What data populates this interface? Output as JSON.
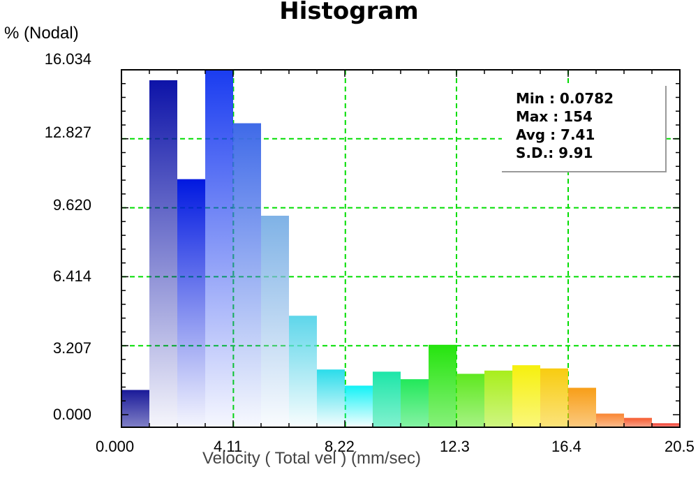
{
  "title": "Histogram",
  "y_axis_label": "% (Nodal)",
  "x_axis_label": "Velocity ( Total vel ) (mm/sec)",
  "y_ticks": [
    "16.034",
    "12.827",
    "9.620",
    "6.414",
    "3.207",
    "0.000"
  ],
  "x_ticks": [
    "0.000",
    "4.11",
    "8.22",
    "12.3",
    "16.4",
    "20.5"
  ],
  "stats": {
    "min": "Min : 0.0782",
    "max": "Max : 154",
    "avg": "Avg : 7.41",
    "sd": "S.D.: 9.91"
  },
  "chart_data": {
    "type": "bar",
    "title": "Histogram",
    "xlabel": "Velocity ( Total vel ) (mm/sec)",
    "ylabel": "% (Nodal)",
    "xlim": [
      0,
      20.5
    ],
    "ylim": [
      -0.6,
      16.034
    ],
    "yticks": [
      0.0,
      3.207,
      6.414,
      9.62,
      12.827,
      16.034
    ],
    "xticks": [
      0.0,
      4.11,
      8.22,
      12.3,
      16.4,
      20.5
    ],
    "grid": true,
    "bin_width": 1.025,
    "values": [
      1.15,
      15.55,
      10.95,
      16.034,
      13.55,
      9.25,
      4.6,
      2.1,
      1.35,
      2.0,
      1.65,
      3.25,
      1.9,
      2.05,
      2.3,
      2.15,
      1.25,
      0.05,
      -0.15,
      -0.4
    ],
    "colors": [
      "#1a1a99",
      "#0d13a8",
      "#0018e0",
      "#1a3cf0",
      "#3f6ae8",
      "#7fb2e6",
      "#5ed6ea",
      "#2bdcea",
      "#12f2f6",
      "#1de6a8",
      "#22e85a",
      "#25e40e",
      "#5ee81f",
      "#a8ee1c",
      "#f6f00e",
      "#f8cc10",
      "#f89e18",
      "#f98632",
      "#f65c30",
      "#f23a2a"
    ]
  }
}
